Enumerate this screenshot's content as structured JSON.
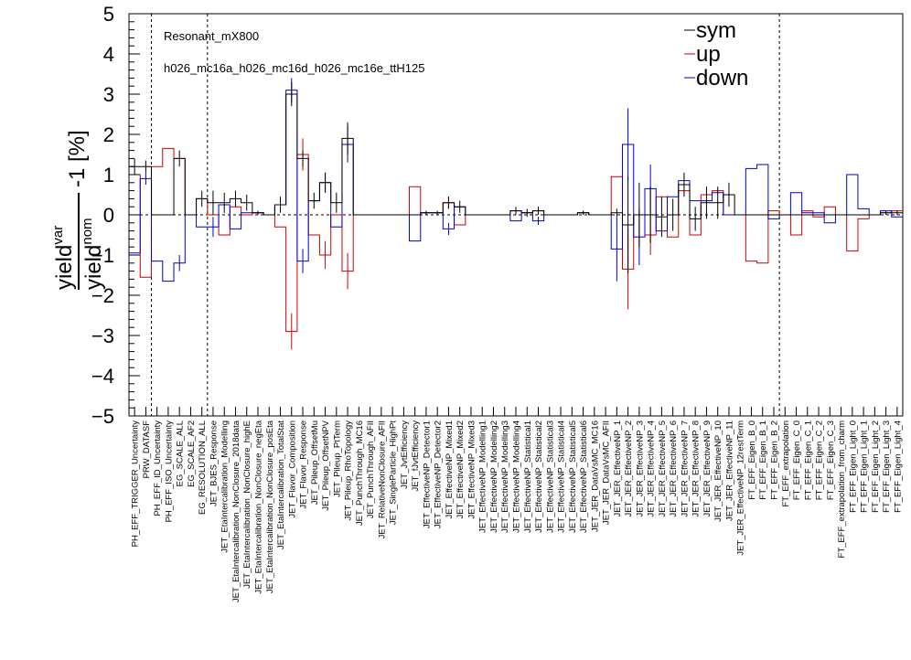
{
  "chart_data": {
    "type": "line",
    "annotations": [
      "Resonant_mX800",
      "h026_mc16a_h026_mc16d_h026_mc16e_ttH125"
    ],
    "ylabel": {
      "num": "yield",
      "num_sup": "var",
      "den": "yield",
      "den_sup": "nom",
      "suffix": "-1 [%]"
    },
    "ylim": [
      -5,
      5
    ],
    "yticks": [
      "5",
      "4",
      "3",
      "2",
      "1",
      "0",
      "−1",
      "−2",
      "−3",
      "−4",
      "−5"
    ],
    "legend": [
      {
        "name": "sym",
        "color": "#000000"
      },
      {
        "name": "up",
        "color": "#cc0000"
      },
      {
        "name": "down",
        "color": "#0000cc"
      }
    ],
    "section_dividers_after": [
      1,
      6,
      57
    ],
    "categories": [
      "PH_EFF_TRIGGER_Uncertainty",
      "PRW_DATASF",
      "PH_EFF_ID_Uncertainty",
      "PH_EFF_ISO_Uncertainty",
      "EG_SCALE_ALL",
      "EG_SCALE_AF2",
      "EG_RESOLUTION_ALL",
      "JET_BJES_Response",
      "JET_EtaIntercalibration_Modelling",
      "JET_EtaIntercalibration_NonClosure_2018data",
      "JET_EtaIntercalibration_NonClosure_highE",
      "JET_EtaIntercalibration_NonClosure_negEta",
      "JET_EtaIntercalibration_NonClosure_posEta",
      "JET_EtaIntercalibration_TotalStat",
      "JET_Flavor_Composition",
      "JET_Flavor_Response",
      "JET_Pileup_OffsetMu",
      "JET_Pileup_OffsetNPV",
      "JET_Pileup_PtTerm",
      "JET_Pileup_RhoTopology",
      "JET_PunchThrough_MC16",
      "JET_PunchThrough_AFII",
      "JET_RelativeNonClosure_AFII",
      "JET_SingleParticle_HighPt",
      "JET_JvtEfficiency",
      "JET_fJvtEfficiency",
      "JET_EffectiveNP_Detector1",
      "JET_EffectiveNP_Detector2",
      "JET_EffectiveNP_Mixed1",
      "JET_EffectiveNP_Mixed2",
      "JET_EffectiveNP_Mixed3",
      "JET_EffectiveNP_Modelling1",
      "JET_EffectiveNP_Modelling2",
      "JET_EffectiveNP_Modelling3",
      "JET_EffectiveNP_Modelling4",
      "JET_EffectiveNP_Statistical1",
      "JET_EffectiveNP_Statistical2",
      "JET_EffectiveNP_Statistical3",
      "JET_EffectiveNP_Statistical4",
      "JET_EffectiveNP_Statistical5",
      "JET_EffectiveNP_Statistical6",
      "JET_JER_DataVsMC_MC16",
      "JET_JER_DataVsMC_AFII",
      "JET_JER_EffectiveNP_1",
      "JET_JER_EffectiveNP_2",
      "JET_JER_EffectiveNP_3",
      "JET_JER_EffectiveNP_4",
      "JET_JER_EffectiveNP_5",
      "JET_JER_EffectiveNP_6",
      "JET_JER_EffectiveNP_7",
      "JET_JER_EffectiveNP_8",
      "JET_JER_EffectiveNP_9",
      "JET_JER_EffectiveNP_10",
      "JET_JER_EffectiveNP_11",
      "JET_JER_EffectiveNP_12restTerm",
      "FT_EFF_Eigen_B_0",
      "FT_EFF_Eigen_B_1",
      "FT_EFF_Eigen_B_2",
      "FT_EFF_extrapolation",
      "FT_EFF_Eigen_C_0",
      "FT_EFF_Eigen_C_1",
      "FT_EFF_Eigen_C_2",
      "FT_EFF_Eigen_C_3",
      "FT_EFF_extrapolation_from_charm",
      "FT_EFF_Eigen_Light_0",
      "FT_EFF_Eigen_Light_1",
      "FT_EFF_Eigen_Light_2",
      "FT_EFF_Eigen_Light_3",
      "FT_EFF_Eigen_Light_4"
    ],
    "series": [
      {
        "name": "sym",
        "values": [
          1.2,
          1.2,
          0,
          0,
          1.4,
          0,
          0.4,
          0.3,
          0.3,
          0.4,
          0.3,
          0.05,
          0,
          0.25,
          3.0,
          1.4,
          0.35,
          0.8,
          0.3,
          1.9,
          0,
          0,
          0,
          0,
          0,
          0,
          0.05,
          0.05,
          0.3,
          0.2,
          0,
          0,
          0,
          0,
          0.1,
          0.05,
          0.1,
          0,
          0,
          0,
          0.05,
          0,
          0,
          0.05,
          -0.25,
          0,
          0,
          -0.05,
          0,
          0.75,
          -0.1,
          0.3,
          0.3,
          0.5,
          0,
          0,
          0,
          0,
          0,
          0,
          0,
          0,
          0,
          0,
          0,
          0,
          0,
          0.05,
          0.05
        ],
        "errors": [
          0.2,
          0.15,
          0,
          0,
          0.2,
          0,
          0.2,
          0.3,
          0.25,
          0.2,
          0.2,
          0.05,
          0,
          0.2,
          0.3,
          0.2,
          0.2,
          0.25,
          0.25,
          0.4,
          0,
          0,
          0,
          0,
          0,
          0,
          0.05,
          0.05,
          0.15,
          0.15,
          0,
          0,
          0,
          0,
          0.1,
          0.1,
          0.1,
          0,
          0,
          0,
          0.05,
          0,
          0,
          0.1,
          1.2,
          0.8,
          0.7,
          0.5,
          0.4,
          0.3,
          0.3,
          0.4,
          0.4,
          0.3,
          0,
          0,
          0,
          0,
          0,
          0,
          0,
          0,
          0,
          0,
          0,
          0,
          0,
          0.05,
          0.05
        ]
      },
      {
        "name": "up",
        "values": [
          1.0,
          -1.55,
          1.2,
          1.65,
          1.4,
          0,
          0.4,
          0,
          -0.5,
          0.2,
          0,
          0.05,
          0,
          -0.3,
          -2.9,
          1.5,
          -0.5,
          -1.0,
          0,
          -1.4,
          0,
          0,
          0,
          0,
          0,
          0.7,
          0.05,
          0.05,
          0.3,
          -0.25,
          0,
          0,
          0,
          0,
          0.1,
          0.05,
          0.1,
          0,
          0,
          0,
          0.05,
          0,
          0,
          0.95,
          -1.35,
          0,
          -0.5,
          0.45,
          -0.55,
          0.6,
          -0.5,
          0.5,
          0.6,
          0,
          0,
          -1.15,
          -1.2,
          0.1,
          0,
          -0.5,
          0.1,
          -0.05,
          0.2,
          0,
          -0.9,
          -0.1,
          0,
          0.05,
          0.1
        ],
        "errors": [
          0,
          0,
          0,
          0,
          0,
          0,
          0,
          0,
          0,
          0,
          0,
          0,
          0,
          0,
          0.45,
          0.4,
          0,
          0.35,
          0,
          0.45,
          0,
          0,
          0,
          0,
          0,
          0,
          0,
          0,
          0.15,
          0,
          0,
          0,
          0,
          0,
          0,
          0,
          0.1,
          0,
          0,
          0,
          0.05,
          0,
          0,
          0,
          1.0,
          0,
          0.5,
          0,
          0,
          0,
          0,
          0,
          0,
          0,
          0,
          0,
          0,
          0,
          0,
          0,
          0,
          0,
          0,
          0,
          0,
          0,
          0,
          0,
          0
        ]
      },
      {
        "name": "down",
        "values": [
          -0.95,
          0.9,
          -1.15,
          -1.65,
          -1.2,
          0,
          -0.3,
          -0.3,
          0.25,
          -0.35,
          0.05,
          0.05,
          0,
          0.25,
          3.1,
          -1.15,
          0.35,
          0.8,
          -0.3,
          1.75,
          0,
          0,
          0,
          0,
          0,
          -0.65,
          0.05,
          0.05,
          -0.35,
          0.2,
          0,
          0,
          0,
          0,
          -0.15,
          0.05,
          -0.15,
          0,
          0,
          0,
          0.05,
          0,
          0,
          -0.85,
          1.75,
          -0.55,
          0.65,
          -0.4,
          0.45,
          0.85,
          0.35,
          0.35,
          0.55,
          0,
          0,
          1.15,
          1.25,
          -0.1,
          0,
          0.55,
          0.05,
          0.05,
          -0.2,
          0,
          1.0,
          0.15,
          0,
          0.1,
          -0.05
        ],
        "errors": [
          0,
          0.15,
          0,
          0,
          0.2,
          0,
          0,
          0.25,
          0,
          0,
          0,
          0,
          0,
          0,
          0.3,
          0.3,
          0,
          0.25,
          0,
          0.45,
          0,
          0,
          0,
          0,
          0,
          0,
          0,
          0,
          0.15,
          0,
          0,
          0,
          0,
          0,
          0,
          0,
          0.1,
          0,
          0,
          0,
          0.05,
          0,
          0,
          0.8,
          0.9,
          0.7,
          0.6,
          0,
          0,
          0,
          0,
          0,
          0,
          0,
          0,
          0,
          0,
          0,
          0,
          0,
          0,
          0,
          0,
          0,
          0,
          0,
          0,
          0,
          0
        ]
      }
    ]
  }
}
